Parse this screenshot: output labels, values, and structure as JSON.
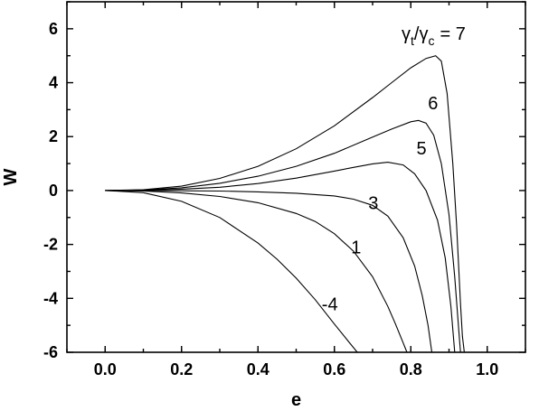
{
  "chart_data": {
    "type": "line",
    "title": "",
    "xlabel": "e",
    "ylabel": "W",
    "xlim": [
      -0.1,
      1.1
    ],
    "ylim": [
      -6,
      7
    ],
    "xticks": [
      "0.0",
      "0.2",
      "0.4",
      "0.6",
      "0.8",
      "1.0"
    ],
    "yticks": [
      "-6",
      "-4",
      "-2",
      "0",
      "2",
      "4",
      "6"
    ],
    "grid": false,
    "legend": "none",
    "annotation_header": {
      "symbol": "γ",
      "sub_numerator": "t",
      "sub_denominator": "c",
      "slash": "/",
      "equals_value": "= 7"
    },
    "series": [
      {
        "label": "7",
        "x": [
          0.0,
          0.1,
          0.2,
          0.3,
          0.4,
          0.5,
          0.6,
          0.7,
          0.75,
          0.8,
          0.84,
          0.865,
          0.88,
          0.895,
          0.91,
          0.92,
          0.93,
          0.935,
          0.94
        ],
        "y": [
          0.0,
          0.03,
          0.16,
          0.45,
          0.9,
          1.55,
          2.4,
          3.45,
          4.0,
          4.55,
          4.9,
          5.0,
          4.8,
          3.6,
          1.0,
          -1.3,
          -4.2,
          -5.4,
          -6.0
        ]
      },
      {
        "label": "6",
        "x": [
          0.0,
          0.1,
          0.2,
          0.3,
          0.4,
          0.5,
          0.6,
          0.7,
          0.75,
          0.8,
          0.82,
          0.84,
          0.86,
          0.88,
          0.9,
          0.915,
          0.925,
          0.93
        ],
        "y": [
          0.0,
          0.02,
          0.1,
          0.27,
          0.53,
          0.9,
          1.38,
          1.98,
          2.28,
          2.55,
          2.6,
          2.5,
          2.05,
          1.0,
          -0.9,
          -3.2,
          -5.1,
          -6.0
        ]
      },
      {
        "label": "5",
        "x": [
          0.0,
          0.1,
          0.2,
          0.3,
          0.4,
          0.5,
          0.6,
          0.65,
          0.7,
          0.74,
          0.78,
          0.81,
          0.84,
          0.87,
          0.89,
          0.905,
          0.915
        ],
        "y": [
          0.0,
          0.01,
          0.05,
          0.12,
          0.26,
          0.46,
          0.72,
          0.86,
          0.99,
          1.05,
          0.95,
          0.62,
          0.0,
          -1.1,
          -2.5,
          -4.3,
          -6.0
        ]
      },
      {
        "label": "3",
        "x": [
          0.0,
          0.1,
          0.2,
          0.3,
          0.4,
          0.5,
          0.6,
          0.65,
          0.7,
          0.74,
          0.78,
          0.81,
          0.83,
          0.845,
          0.855
        ],
        "y": [
          0.0,
          0.0,
          -0.01,
          -0.02,
          -0.05,
          -0.1,
          -0.2,
          -0.32,
          -0.55,
          -0.95,
          -1.75,
          -2.8,
          -3.9,
          -5.0,
          -6.0
        ]
      },
      {
        "label": "1",
        "x": [
          0.0,
          0.1,
          0.2,
          0.3,
          0.4,
          0.5,
          0.55,
          0.6,
          0.65,
          0.7,
          0.74,
          0.76,
          0.78,
          0.79
        ],
        "y": [
          0.0,
          -0.02,
          -0.09,
          -0.22,
          -0.45,
          -0.85,
          -1.15,
          -1.6,
          -2.25,
          -3.2,
          -4.3,
          -4.95,
          -5.65,
          -6.0
        ]
      },
      {
        "label": "-4",
        "x": [
          0.0,
          0.1,
          0.2,
          0.3,
          0.4,
          0.45,
          0.5,
          0.55,
          0.6,
          0.64,
          0.66
        ],
        "y": [
          0.0,
          -0.08,
          -0.4,
          -1.0,
          -1.95,
          -2.55,
          -3.25,
          -4.05,
          -4.95,
          -5.65,
          -6.0
        ]
      }
    ],
    "labels": [
      {
        "text": "6",
        "x": 0.858,
        "y": 3.25
      },
      {
        "text": "5",
        "x": 0.828,
        "y": 1.57
      },
      {
        "text": "3",
        "x": 0.702,
        "y": -0.45
      },
      {
        "text": "1",
        "x": 0.657,
        "y": -2.1
      },
      {
        "text": "-4",
        "x": 0.588,
        "y": -4.2
      }
    ]
  }
}
